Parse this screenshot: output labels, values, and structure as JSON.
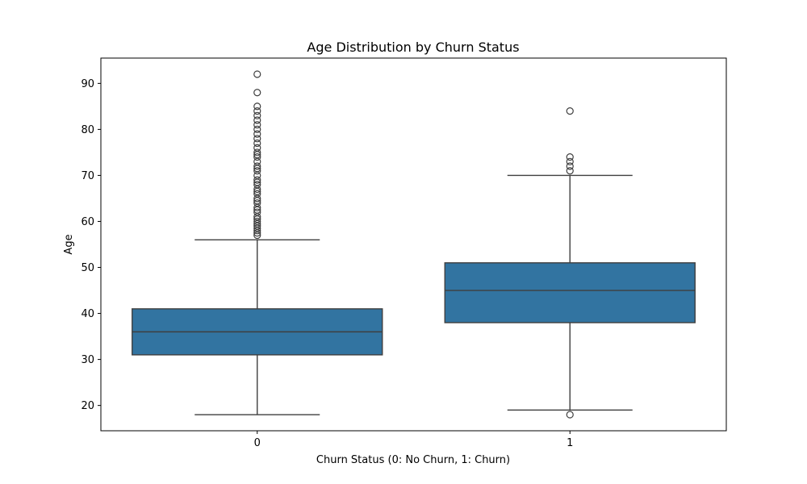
{
  "chart_data": {
    "type": "box",
    "title": "Age Distribution by Churn Status",
    "xlabel": "Churn Status (0: No Churn, 1: Churn)",
    "ylabel": "Age",
    "ylim": [
      14.5,
      95.5
    ],
    "yticks": [
      20,
      30,
      40,
      50,
      60,
      70,
      80,
      90
    ],
    "categories": [
      "0",
      "1"
    ],
    "box_color": "#3274a1",
    "line_color": "#3f3f3f",
    "grid": false,
    "boxes": [
      {
        "category": "0",
        "whisker_low": 18,
        "q1": 31,
        "median": 36,
        "q3": 41,
        "whisker_high": 56,
        "outliers": [
          57,
          57.5,
          58,
          58.5,
          59,
          59.5,
          60,
          60.5,
          61,
          62,
          62.5,
          63,
          64,
          64.5,
          65,
          66,
          66.5,
          67,
          68,
          68.5,
          69,
          70,
          71,
          71.5,
          72,
          73,
          74,
          74.5,
          75,
          76,
          77,
          78,
          79,
          80,
          81,
          82,
          83,
          84,
          85,
          88,
          92
        ]
      },
      {
        "category": "1",
        "whisker_low": 19,
        "q1": 38,
        "median": 45,
        "q3": 51,
        "whisker_high": 70,
        "outliers": [
          18,
          71,
          72,
          73,
          74,
          84
        ]
      }
    ]
  }
}
